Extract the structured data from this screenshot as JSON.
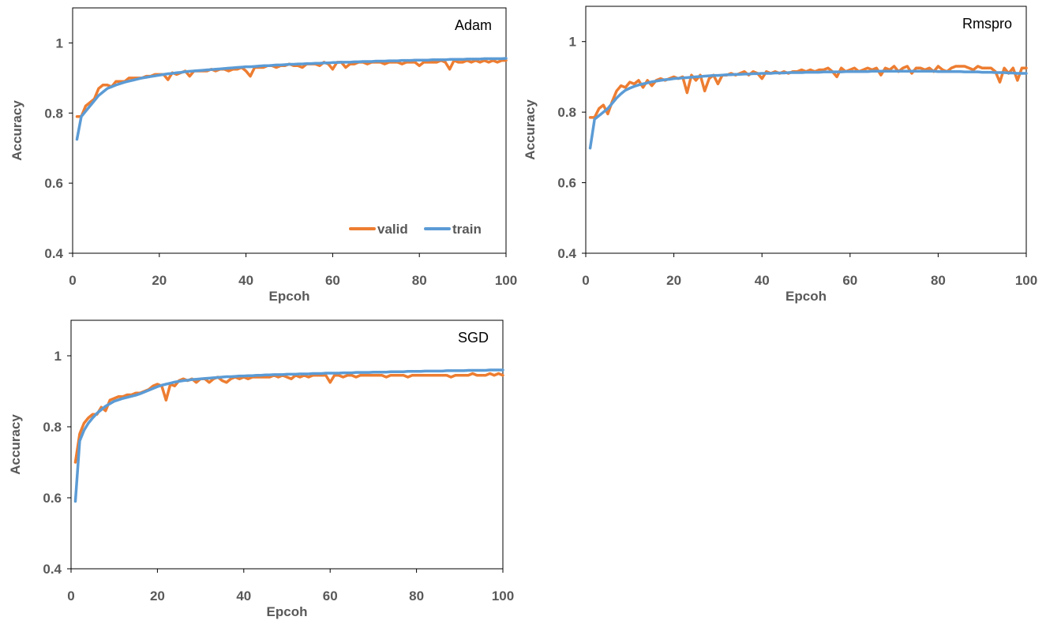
{
  "colors": {
    "valid": "#ED7D31",
    "train": "#5B9BD5"
  },
  "chart_data": [
    {
      "type": "line",
      "title": "Adam",
      "xlabel": "Epcoh",
      "ylabel": "Accuracy",
      "xlim": [
        0,
        100
      ],
      "ylim": [
        0.4,
        1.1
      ],
      "xticks": [
        0,
        20,
        40,
        60,
        80,
        100
      ],
      "xtick_labels": [
        "0",
        "20",
        "40",
        "60",
        "80",
        "100"
      ],
      "yticks": [
        0.4,
        0.6,
        0.8,
        1.0
      ],
      "ytick_labels": [
        "0.4",
        "0.6",
        "0.8",
        "1"
      ],
      "grid": false,
      "legend": {
        "show": true,
        "position": "bottom-right",
        "labels": [
          "valid",
          "train"
        ]
      },
      "x": [
        1,
        2,
        3,
        4,
        5,
        6,
        7,
        8,
        9,
        10,
        11,
        12,
        13,
        14,
        15,
        16,
        17,
        18,
        19,
        20,
        21,
        22,
        23,
        24,
        25,
        26,
        27,
        28,
        29,
        30,
        31,
        32,
        33,
        34,
        35,
        36,
        37,
        38,
        39,
        40,
        41,
        42,
        43,
        44,
        45,
        46,
        47,
        48,
        49,
        50,
        51,
        52,
        53,
        54,
        55,
        56,
        57,
        58,
        59,
        60,
        61,
        62,
        63,
        64,
        65,
        66,
        67,
        68,
        69,
        70,
        71,
        72,
        73,
        74,
        75,
        76,
        77,
        78,
        79,
        80,
        81,
        82,
        83,
        84,
        85,
        86,
        87,
        88,
        89,
        90,
        91,
        92,
        93,
        94,
        95,
        96,
        97,
        98,
        99,
        100
      ],
      "series": [
        {
          "name": "valid",
          "values": [
            0.79,
            0.79,
            0.82,
            0.83,
            0.84,
            0.87,
            0.88,
            0.88,
            0.875,
            0.89,
            0.89,
            0.89,
            0.9,
            0.9,
            0.9,
            0.9,
            0.905,
            0.905,
            0.91,
            0.91,
            0.91,
            0.895,
            0.915,
            0.91,
            0.915,
            0.92,
            0.905,
            0.92,
            0.92,
            0.92,
            0.92,
            0.925,
            0.92,
            0.925,
            0.925,
            0.92,
            0.925,
            0.925,
            0.93,
            0.92,
            0.905,
            0.93,
            0.93,
            0.93,
            0.935,
            0.935,
            0.93,
            0.935,
            0.935,
            0.94,
            0.935,
            0.935,
            0.93,
            0.94,
            0.94,
            0.94,
            0.935,
            0.945,
            0.94,
            0.925,
            0.945,
            0.945,
            0.93,
            0.94,
            0.94,
            0.945,
            0.945,
            0.94,
            0.945,
            0.945,
            0.945,
            0.94,
            0.945,
            0.945,
            0.945,
            0.94,
            0.945,
            0.945,
            0.945,
            0.935,
            0.945,
            0.945,
            0.945,
            0.945,
            0.95,
            0.945,
            0.925,
            0.95,
            0.945,
            0.945,
            0.95,
            0.945,
            0.95,
            0.945,
            0.95,
            0.945,
            0.95,
            0.945,
            0.95,
            0.95
          ]
        },
        {
          "name": "train",
          "values": [
            0.725,
            0.79,
            0.805,
            0.82,
            0.835,
            0.85,
            0.86,
            0.87,
            0.875,
            0.88,
            0.884,
            0.888,
            0.891,
            0.894,
            0.897,
            0.9,
            0.902,
            0.904,
            0.906,
            0.908,
            0.91,
            0.912,
            0.913,
            0.915,
            0.916,
            0.918,
            0.919,
            0.92,
            0.921,
            0.922,
            0.923,
            0.924,
            0.925,
            0.926,
            0.927,
            0.928,
            0.929,
            0.93,
            0.931,
            0.932,
            0.932,
            0.933,
            0.934,
            0.935,
            0.935,
            0.936,
            0.937,
            0.937,
            0.938,
            0.939,
            0.939,
            0.94,
            0.94,
            0.941,
            0.941,
            0.942,
            0.942,
            0.943,
            0.943,
            0.944,
            0.944,
            0.945,
            0.945,
            0.945,
            0.946,
            0.946,
            0.947,
            0.947,
            0.947,
            0.948,
            0.948,
            0.948,
            0.949,
            0.949,
            0.949,
            0.95,
            0.95,
            0.95,
            0.951,
            0.951,
            0.951,
            0.951,
            0.952,
            0.952,
            0.952,
            0.952,
            0.953,
            0.953,
            0.953,
            0.953,
            0.954,
            0.954,
            0.954,
            0.954,
            0.955,
            0.955,
            0.955,
            0.955,
            0.955,
            0.956
          ]
        }
      ]
    },
    {
      "type": "line",
      "title": "Rmspro",
      "xlabel": "Epcoh",
      "ylabel": "Accuracy",
      "xlim": [
        0,
        100
      ],
      "ylim": [
        0.4,
        1.1
      ],
      "xticks": [
        0,
        20,
        40,
        60,
        80,
        100
      ],
      "xtick_labels": [
        "0",
        "20",
        "40",
        "60",
        "80",
        "100"
      ],
      "yticks": [
        0.4,
        0.6,
        0.8,
        1.0
      ],
      "ytick_labels": [
        "0.4",
        "0.6",
        "0.8",
        "1"
      ],
      "grid": false,
      "legend": {
        "show": false
      },
      "x": [
        1,
        2,
        3,
        4,
        5,
        6,
        7,
        8,
        9,
        10,
        11,
        12,
        13,
        14,
        15,
        16,
        17,
        18,
        19,
        20,
        21,
        22,
        23,
        24,
        25,
        26,
        27,
        28,
        29,
        30,
        31,
        32,
        33,
        34,
        35,
        36,
        37,
        38,
        39,
        40,
        41,
        42,
        43,
        44,
        45,
        46,
        47,
        48,
        49,
        50,
        51,
        52,
        53,
        54,
        55,
        56,
        57,
        58,
        59,
        60,
        61,
        62,
        63,
        64,
        65,
        66,
        67,
        68,
        69,
        70,
        71,
        72,
        73,
        74,
        75,
        76,
        77,
        78,
        79,
        80,
        81,
        82,
        83,
        84,
        85,
        86,
        87,
        88,
        89,
        90,
        91,
        92,
        93,
        94,
        95,
        96,
        97,
        98,
        99,
        100
      ],
      "series": [
        {
          "name": "valid",
          "values": [
            0.785,
            0.785,
            0.81,
            0.82,
            0.795,
            0.83,
            0.86,
            0.875,
            0.87,
            0.885,
            0.88,
            0.89,
            0.87,
            0.89,
            0.875,
            0.89,
            0.895,
            0.89,
            0.895,
            0.9,
            0.895,
            0.9,
            0.855,
            0.905,
            0.89,
            0.905,
            0.86,
            0.895,
            0.905,
            0.88,
            0.905,
            0.905,
            0.91,
            0.905,
            0.91,
            0.915,
            0.905,
            0.915,
            0.91,
            0.895,
            0.915,
            0.91,
            0.915,
            0.91,
            0.915,
            0.91,
            0.915,
            0.915,
            0.92,
            0.915,
            0.92,
            0.915,
            0.92,
            0.92,
            0.925,
            0.915,
            0.9,
            0.925,
            0.915,
            0.92,
            0.925,
            0.915,
            0.92,
            0.925,
            0.92,
            0.925,
            0.905,
            0.925,
            0.92,
            0.93,
            0.915,
            0.925,
            0.93,
            0.91,
            0.925,
            0.925,
            0.92,
            0.925,
            0.915,
            0.93,
            0.92,
            0.915,
            0.925,
            0.93,
            0.93,
            0.93,
            0.925,
            0.92,
            0.93,
            0.925,
            0.925,
            0.925,
            0.915,
            0.885,
            0.925,
            0.91,
            0.925,
            0.89,
            0.925,
            0.925
          ]
        },
        {
          "name": "train",
          "values": [
            0.698,
            0.78,
            0.79,
            0.8,
            0.81,
            0.825,
            0.84,
            0.852,
            0.862,
            0.868,
            0.873,
            0.877,
            0.88,
            0.883,
            0.886,
            0.888,
            0.89,
            0.892,
            0.893,
            0.895,
            0.896,
            0.897,
            0.898,
            0.899,
            0.9,
            0.901,
            0.902,
            0.903,
            0.904,
            0.904,
            0.905,
            0.906,
            0.906,
            0.907,
            0.907,
            0.908,
            0.908,
            0.909,
            0.909,
            0.91,
            0.91,
            0.91,
            0.911,
            0.911,
            0.911,
            0.912,
            0.912,
            0.912,
            0.912,
            0.913,
            0.913,
            0.913,
            0.913,
            0.914,
            0.914,
            0.914,
            0.914,
            0.914,
            0.915,
            0.915,
            0.915,
            0.915,
            0.915,
            0.915,
            0.916,
            0.916,
            0.916,
            0.916,
            0.916,
            0.916,
            0.916,
            0.916,
            0.916,
            0.916,
            0.916,
            0.916,
            0.916,
            0.916,
            0.916,
            0.915,
            0.915,
            0.915,
            0.915,
            0.915,
            0.915,
            0.914,
            0.914,
            0.914,
            0.914,
            0.913,
            0.913,
            0.913,
            0.912,
            0.912,
            0.912,
            0.911,
            0.911,
            0.91,
            0.91,
            0.91
          ]
        }
      ]
    },
    {
      "type": "line",
      "title": "SGD",
      "xlabel": "Epcoh",
      "ylabel": "Accuracy",
      "xlim": [
        0,
        100
      ],
      "ylim": [
        0.4,
        1.1
      ],
      "xticks": [
        0,
        20,
        40,
        60,
        80,
        100
      ],
      "xtick_labels": [
        "0",
        "20",
        "40",
        "60",
        "80",
        "100"
      ],
      "yticks": [
        0.4,
        0.6,
        0.8,
        1.0
      ],
      "ytick_labels": [
        "0.4",
        "0.6",
        "0.8",
        "1"
      ],
      "grid": false,
      "legend": {
        "show": false
      },
      "x": [
        1,
        2,
        3,
        4,
        5,
        6,
        7,
        8,
        9,
        10,
        11,
        12,
        13,
        14,
        15,
        16,
        17,
        18,
        19,
        20,
        21,
        22,
        23,
        24,
        25,
        26,
        27,
        28,
        29,
        30,
        31,
        32,
        33,
        34,
        35,
        36,
        37,
        38,
        39,
        40,
        41,
        42,
        43,
        44,
        45,
        46,
        47,
        48,
        49,
        50,
        51,
        52,
        53,
        54,
        55,
        56,
        57,
        58,
        59,
        60,
        61,
        62,
        63,
        64,
        65,
        66,
        67,
        68,
        69,
        70,
        71,
        72,
        73,
        74,
        75,
        76,
        77,
        78,
        79,
        80,
        81,
        82,
        83,
        84,
        85,
        86,
        87,
        88,
        89,
        90,
        91,
        92,
        93,
        94,
        95,
        96,
        97,
        98,
        99,
        100
      ],
      "series": [
        {
          "name": "valid",
          "values": [
            0.7,
            0.78,
            0.81,
            0.825,
            0.835,
            0.835,
            0.855,
            0.845,
            0.875,
            0.88,
            0.885,
            0.885,
            0.89,
            0.89,
            0.895,
            0.895,
            0.9,
            0.905,
            0.915,
            0.92,
            0.915,
            0.875,
            0.92,
            0.915,
            0.93,
            0.935,
            0.93,
            0.935,
            0.925,
            0.935,
            0.935,
            0.925,
            0.935,
            0.94,
            0.93,
            0.925,
            0.935,
            0.94,
            0.935,
            0.94,
            0.935,
            0.94,
            0.94,
            0.94,
            0.94,
            0.94,
            0.945,
            0.94,
            0.945,
            0.94,
            0.935,
            0.945,
            0.94,
            0.945,
            0.94,
            0.945,
            0.945,
            0.945,
            0.945,
            0.925,
            0.945,
            0.945,
            0.94,
            0.945,
            0.945,
            0.94,
            0.945,
            0.945,
            0.945,
            0.945,
            0.945,
            0.945,
            0.94,
            0.945,
            0.945,
            0.945,
            0.945,
            0.94,
            0.945,
            0.945,
            0.945,
            0.945,
            0.945,
            0.945,
            0.945,
            0.945,
            0.945,
            0.94,
            0.945,
            0.945,
            0.945,
            0.945,
            0.95,
            0.945,
            0.945,
            0.945,
            0.95,
            0.945,
            0.95,
            0.945
          ]
        },
        {
          "name": "train",
          "values": [
            0.59,
            0.76,
            0.79,
            0.81,
            0.825,
            0.838,
            0.848,
            0.858,
            0.865,
            0.872,
            0.876,
            0.88,
            0.883,
            0.886,
            0.889,
            0.893,
            0.898,
            0.903,
            0.908,
            0.913,
            0.917,
            0.92,
            0.923,
            0.926,
            0.928,
            0.93,
            0.931,
            0.933,
            0.934,
            0.935,
            0.936,
            0.937,
            0.938,
            0.939,
            0.94,
            0.941,
            0.941,
            0.942,
            0.943,
            0.943,
            0.944,
            0.944,
            0.945,
            0.945,
            0.946,
            0.946,
            0.947,
            0.947,
            0.947,
            0.948,
            0.948,
            0.948,
            0.949,
            0.949,
            0.949,
            0.95,
            0.95,
            0.95,
            0.951,
            0.951,
            0.951,
            0.951,
            0.952,
            0.952,
            0.952,
            0.953,
            0.953,
            0.953,
            0.953,
            0.954,
            0.954,
            0.954,
            0.954,
            0.955,
            0.955,
            0.955,
            0.955,
            0.956,
            0.956,
            0.956,
            0.956,
            0.957,
            0.957,
            0.957,
            0.957,
            0.957,
            0.958,
            0.958,
            0.958,
            0.958,
            0.958,
            0.959,
            0.959,
            0.959,
            0.959,
            0.959,
            0.96,
            0.96,
            0.96,
            0.96
          ]
        }
      ]
    }
  ]
}
